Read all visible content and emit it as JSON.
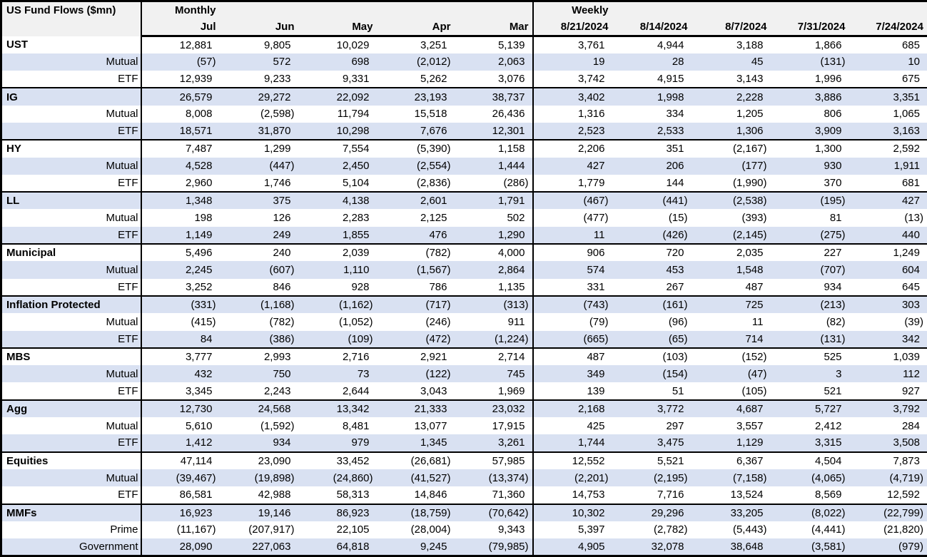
{
  "chart_data": {
    "type": "table",
    "title": "US Fund Flows ($mn)",
    "layout": {
      "band_color": "#D9E1F2",
      "header_bg": "#F1F1F1",
      "border_color": "#000000",
      "negative_format": "parentheses"
    },
    "sections": [
      {
        "label": "Monthly",
        "columns": [
          "Jul",
          "Jun",
          "May",
          "Apr",
          "Mar"
        ]
      },
      {
        "label": "Weekly",
        "columns": [
          "8/21/2024",
          "8/14/2024",
          "8/7/2024",
          "7/31/2024",
          "7/24/2024"
        ]
      }
    ],
    "groups": [
      {
        "rows": [
          {
            "label": "UST",
            "monthly": [
              "12,881",
              "9,805",
              "10,029",
              "3,251",
              "5,139"
            ],
            "weekly": [
              "3,761",
              "4,944",
              "3,188",
              "1,866",
              "685"
            ]
          },
          {
            "label": "Mutual",
            "monthly": [
              "(57)",
              "572",
              "698",
              "(2,012)",
              "2,063"
            ],
            "weekly": [
              "19",
              "28",
              "45",
              "(131)",
              "10"
            ]
          },
          {
            "label": "ETF",
            "monthly": [
              "12,939",
              "9,233",
              "9,331",
              "5,262",
              "3,076"
            ],
            "weekly": [
              "3,742",
              "4,915",
              "3,143",
              "1,996",
              "675"
            ]
          }
        ]
      },
      {
        "rows": [
          {
            "label": "IG",
            "monthly": [
              "26,579",
              "29,272",
              "22,092",
              "23,193",
              "38,737"
            ],
            "weekly": [
              "3,402",
              "1,998",
              "2,228",
              "3,886",
              "3,351"
            ]
          },
          {
            "label": "Mutual",
            "monthly": [
              "8,008",
              "(2,598)",
              "11,794",
              "15,518",
              "26,436"
            ],
            "weekly": [
              "1,316",
              "334",
              "1,205",
              "806",
              "1,065"
            ]
          },
          {
            "label": "ETF",
            "monthly": [
              "18,571",
              "31,870",
              "10,298",
              "7,676",
              "12,301"
            ],
            "weekly": [
              "2,523",
              "2,533",
              "1,306",
              "3,909",
              "3,163"
            ]
          }
        ]
      },
      {
        "rows": [
          {
            "label": "HY",
            "monthly": [
              "7,487",
              "1,299",
              "7,554",
              "(5,390)",
              "1,158"
            ],
            "weekly": [
              "2,206",
              "351",
              "(2,167)",
              "1,300",
              "2,592"
            ]
          },
          {
            "label": "Mutual",
            "monthly": [
              "4,528",
              "(447)",
              "2,450",
              "(2,554)",
              "1,444"
            ],
            "weekly": [
              "427",
              "206",
              "(177)",
              "930",
              "1,911"
            ]
          },
          {
            "label": "ETF",
            "monthly": [
              "2,960",
              "1,746",
              "5,104",
              "(2,836)",
              "(286)"
            ],
            "weekly": [
              "1,779",
              "144",
              "(1,990)",
              "370",
              "681"
            ]
          }
        ]
      },
      {
        "rows": [
          {
            "label": "LL",
            "monthly": [
              "1,348",
              "375",
              "4,138",
              "2,601",
              "1,791"
            ],
            "weekly": [
              "(467)",
              "(441)",
              "(2,538)",
              "(195)",
              "427"
            ]
          },
          {
            "label": "Mutual",
            "monthly": [
              "198",
              "126",
              "2,283",
              "2,125",
              "502"
            ],
            "weekly": [
              "(477)",
              "(15)",
              "(393)",
              "81",
              "(13)"
            ]
          },
          {
            "label": "ETF",
            "monthly": [
              "1,149",
              "249",
              "1,855",
              "476",
              "1,290"
            ],
            "weekly": [
              "11",
              "(426)",
              "(2,145)",
              "(275)",
              "440"
            ]
          }
        ]
      },
      {
        "rows": [
          {
            "label": "Municipal",
            "monthly": [
              "5,496",
              "240",
              "2,039",
              "(782)",
              "4,000"
            ],
            "weekly": [
              "906",
              "720",
              "2,035",
              "227",
              "1,249"
            ]
          },
          {
            "label": "Mutual",
            "monthly": [
              "2,245",
              "(607)",
              "1,110",
              "(1,567)",
              "2,864"
            ],
            "weekly": [
              "574",
              "453",
              "1,548",
              "(707)",
              "604"
            ]
          },
          {
            "label": "ETF",
            "monthly": [
              "3,252",
              "846",
              "928",
              "786",
              "1,135"
            ],
            "weekly": [
              "331",
              "267",
              "487",
              "934",
              "645"
            ]
          }
        ]
      },
      {
        "rows": [
          {
            "label": "Inflation Protected",
            "monthly": [
              "(331)",
              "(1,168)",
              "(1,162)",
              "(717)",
              "(313)"
            ],
            "weekly": [
              "(743)",
              "(161)",
              "725",
              "(213)",
              "303"
            ]
          },
          {
            "label": "Mutual",
            "monthly": [
              "(415)",
              "(782)",
              "(1,052)",
              "(246)",
              "911"
            ],
            "weekly": [
              "(79)",
              "(96)",
              "11",
              "(82)",
              "(39)"
            ]
          },
          {
            "label": "ETF",
            "monthly": [
              "84",
              "(386)",
              "(109)",
              "(472)",
              "(1,224)"
            ],
            "weekly": [
              "(665)",
              "(65)",
              "714",
              "(131)",
              "342"
            ]
          }
        ]
      },
      {
        "rows": [
          {
            "label": "MBS",
            "monthly": [
              "3,777",
              "2,993",
              "2,716",
              "2,921",
              "2,714"
            ],
            "weekly": [
              "487",
              "(103)",
              "(152)",
              "525",
              "1,039"
            ]
          },
          {
            "label": "Mutual",
            "monthly": [
              "432",
              "750",
              "73",
              "(122)",
              "745"
            ],
            "weekly": [
              "349",
              "(154)",
              "(47)",
              "3",
              "112"
            ]
          },
          {
            "label": "ETF",
            "monthly": [
              "3,345",
              "2,243",
              "2,644",
              "3,043",
              "1,969"
            ],
            "weekly": [
              "139",
              "51",
              "(105)",
              "521",
              "927"
            ]
          }
        ]
      },
      {
        "rows": [
          {
            "label": "Agg",
            "monthly": [
              "12,730",
              "24,568",
              "13,342",
              "21,333",
              "23,032"
            ],
            "weekly": [
              "2,168",
              "3,772",
              "4,687",
              "5,727",
              "3,792"
            ]
          },
          {
            "label": "Mutual",
            "monthly": [
              "5,610",
              "(1,592)",
              "8,481",
              "13,077",
              "17,915"
            ],
            "weekly": [
              "425",
              "297",
              "3,557",
              "2,412",
              "284"
            ]
          },
          {
            "label": "ETF",
            "monthly": [
              "1,412",
              "934",
              "979",
              "1,345",
              "3,261"
            ],
            "weekly": [
              "1,744",
              "3,475",
              "1,129",
              "3,315",
              "3,508"
            ]
          }
        ]
      },
      {
        "rows": [
          {
            "label": "Equities",
            "monthly": [
              "47,114",
              "23,090",
              "33,452",
              "(26,681)",
              "57,985"
            ],
            "weekly": [
              "12,552",
              "5,521",
              "6,367",
              "4,504",
              "7,873"
            ]
          },
          {
            "label": "Mutual",
            "monthly": [
              "(39,467)",
              "(19,898)",
              "(24,860)",
              "(41,527)",
              "(13,374)"
            ],
            "weekly": [
              "(2,201)",
              "(2,195)",
              "(7,158)",
              "(4,065)",
              "(4,719)"
            ]
          },
          {
            "label": "ETF",
            "monthly": [
              "86,581",
              "42,988",
              "58,313",
              "14,846",
              "71,360"
            ],
            "weekly": [
              "14,753",
              "7,716",
              "13,524",
              "8,569",
              "12,592"
            ]
          }
        ]
      },
      {
        "rows": [
          {
            "label": "MMFs",
            "monthly": [
              "16,923",
              "19,146",
              "86,923",
              "(18,759)",
              "(70,642)"
            ],
            "weekly": [
              "10,302",
              "29,296",
              "33,205",
              "(8,022)",
              "(22,799)"
            ]
          },
          {
            "label": "Prime",
            "monthly": [
              "(11,167)",
              "(207,917)",
              "22,105",
              "(28,004)",
              "9,343"
            ],
            "weekly": [
              "5,397",
              "(2,782)",
              "(5,443)",
              "(4,441)",
              "(21,820)"
            ]
          },
          {
            "label": "Government",
            "monthly": [
              "28,090",
              "227,063",
              "64,818",
              "9,245",
              "(79,985)"
            ],
            "weekly": [
              "4,905",
              "32,078",
              "38,648",
              "(3,581)",
              "(979)"
            ]
          }
        ]
      }
    ]
  }
}
